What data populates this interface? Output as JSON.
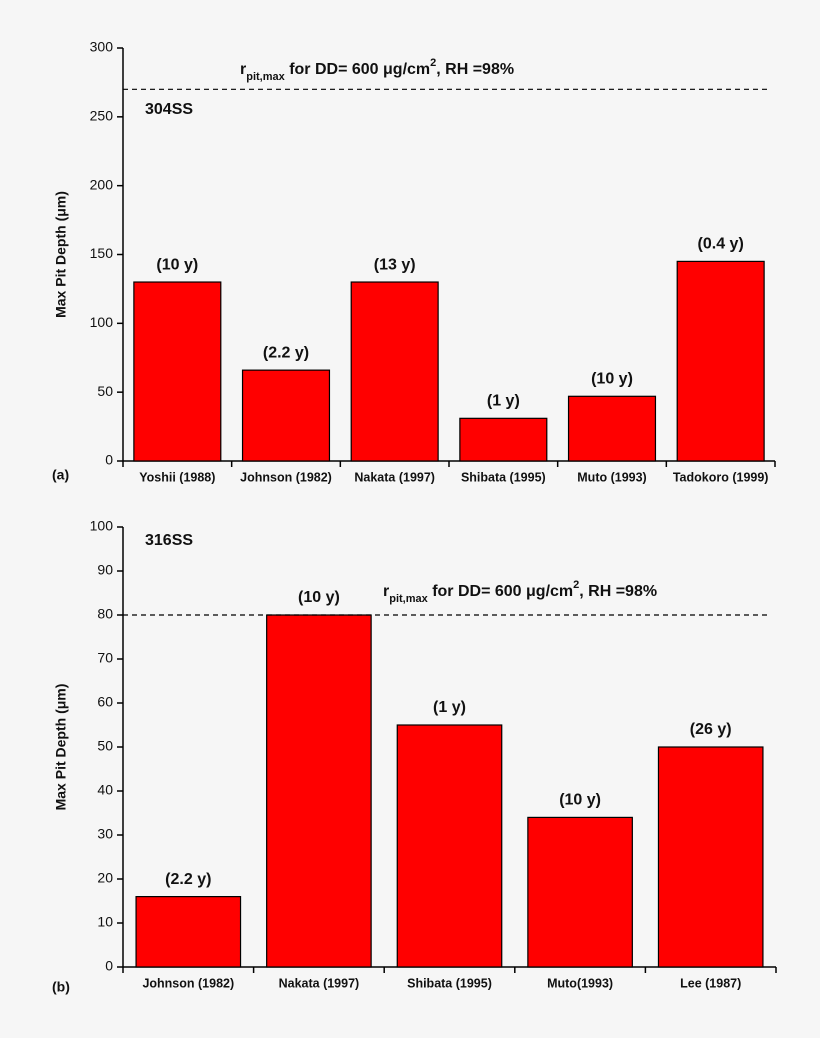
{
  "chart_data": [
    {
      "type": "bar",
      "panel_label": "(a)",
      "ylabel": "Max Pit Depth (μm)",
      "annotation": "304SS",
      "categories": [
        "Yoshii (1988)",
        "Johnson (1982)",
        "Nakata (1997)",
        "Shibata (1995)",
        "Muto (1993)",
        "Tadokoro (1999)"
      ],
      "values": [
        130,
        66,
        130,
        31,
        47,
        145
      ],
      "bar_notes": [
        "(10 y)",
        "(2.2 y)",
        "(13 y)",
        "(1 y)",
        "(10 y)",
        "(0.4 y)"
      ],
      "color": "#ff0000",
      "ylim": [
        0,
        300
      ],
      "yticks": [
        0,
        50,
        100,
        150,
        200,
        250,
        300
      ],
      "reference_line": {
        "value": 270,
        "label_parts": [
          "r",
          "pit,max",
          " for DD= 600 μg/cm",
          "2",
          ", RH =98%"
        ]
      }
    },
    {
      "type": "bar",
      "panel_label": "(b)",
      "ylabel": "Max Pit Depth (μm)",
      "annotation": "316SS",
      "categories": [
        "Johnson (1982)",
        "Nakata (1997)",
        "Shibata (1995)",
        "Muto(1993)",
        "Lee (1987)"
      ],
      "values": [
        16,
        80,
        55,
        34,
        50
      ],
      "bar_notes": [
        "(2.2 y)",
        "(10 y)",
        "(1 y)",
        "(10 y)",
        "(26 y)"
      ],
      "color": "#ff0000",
      "ylim": [
        0,
        100
      ],
      "yticks": [
        0,
        10,
        20,
        30,
        40,
        50,
        60,
        70,
        80,
        90,
        100
      ],
      "reference_line": {
        "value": 80,
        "label_parts": [
          "r",
          "pit,max",
          " for DD= 600 μg/cm",
          "2",
          ", RH =98%"
        ]
      }
    }
  ]
}
